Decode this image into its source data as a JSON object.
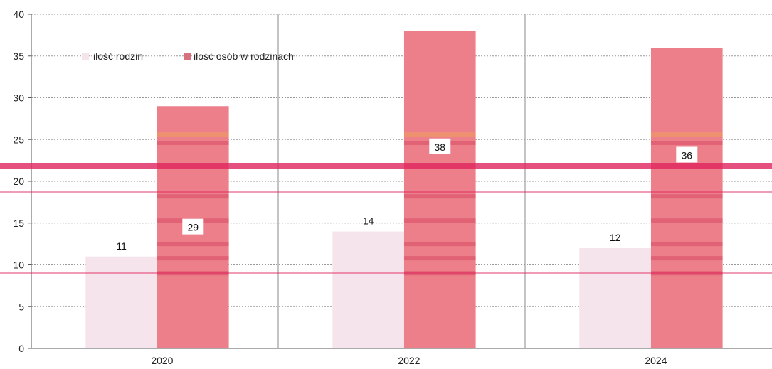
{
  "chart_data": {
    "type": "bar",
    "categories": [
      "2020",
      "2022",
      "2024"
    ],
    "series": [
      {
        "name": "ilość rodzin",
        "values": [
          11,
          14,
          12
        ],
        "color": "#f6e4ec"
      },
      {
        "name": "ilość osób w rodzinach",
        "values": [
          29,
          38,
          36
        ],
        "color": "#ec7f8a"
      }
    ],
    "ylim": [
      0,
      40
    ],
    "yticks": [
      0,
      5,
      10,
      15,
      20,
      25,
      30,
      35,
      40
    ],
    "grid": true,
    "legend": "top-left",
    "accent_line_color": "#e0245e"
  }
}
